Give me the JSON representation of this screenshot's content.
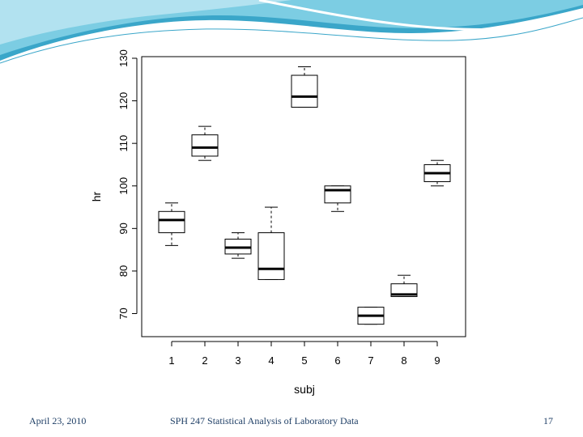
{
  "footer": {
    "date": "April 23, 2010",
    "course": "SPH 247 Statistical Analysis of Laboratory Data",
    "page": "17"
  },
  "colors": {
    "header_wave_dark": "#3aa6c9",
    "header_wave_light": "#bfe7f2",
    "footer_text": "#1f3f66"
  },
  "chart_data": {
    "type": "boxplot",
    "title": "",
    "xlabel": "subj",
    "ylabel": "hr",
    "ylim": [
      65,
      130
    ],
    "yticks": [
      70,
      80,
      90,
      100,
      110,
      120,
      130
    ],
    "categories": [
      "1",
      "2",
      "3",
      "4",
      "5",
      "6",
      "7",
      "8",
      "9"
    ],
    "boxes": [
      {
        "name": "1",
        "min": 86,
        "q1": 89,
        "median": 92,
        "q3": 94,
        "max": 96
      },
      {
        "name": "2",
        "min": 106,
        "q1": 107,
        "median": 109,
        "q3": 112,
        "max": 114
      },
      {
        "name": "3",
        "min": 83,
        "q1": 84,
        "median": 85.5,
        "q3": 87.5,
        "max": 89
      },
      {
        "name": "4",
        "min": 78,
        "q1": 78,
        "median": 80.5,
        "q3": 89,
        "max": 95
      },
      {
        "name": "5",
        "min": 118.5,
        "q1": 118.5,
        "median": 121,
        "q3": 126,
        "max": 128
      },
      {
        "name": "6",
        "min": 94,
        "q1": 96,
        "median": 99,
        "q3": 100,
        "max": 100
      },
      {
        "name": "7",
        "min": 67.5,
        "q1": 67.5,
        "median": 69.5,
        "q3": 71.5,
        "max": 71.5
      },
      {
        "name": "8",
        "min": 74,
        "q1": 74,
        "median": 74.5,
        "q3": 77,
        "max": 79
      },
      {
        "name": "9",
        "min": 100,
        "q1": 101,
        "median": 103,
        "q3": 105,
        "max": 106
      }
    ]
  }
}
